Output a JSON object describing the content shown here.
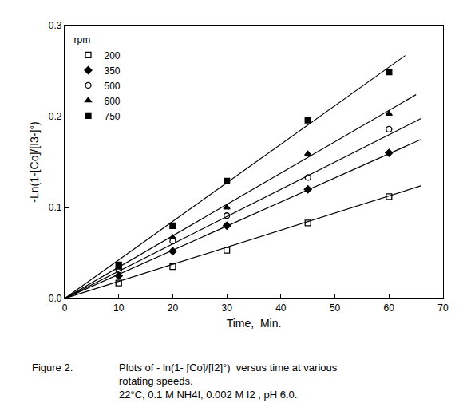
{
  "chart_data": {
    "type": "scatter",
    "x_label": "Time,  Min.",
    "y_label": "-Ln(1-[Co]/[I3-]°)",
    "legend_title": "rpm",
    "legend": "upper left",
    "xlim": [
      0,
      70
    ],
    "xticks": [
      0,
      10,
      20,
      30,
      40,
      50,
      60,
      70
    ],
    "ylim": [
      0,
      0.3
    ],
    "yticks": [
      {
        "value": 0,
        "label": "0.0"
      },
      0.1,
      0.2,
      0.3
    ],
    "grid": false,
    "caption": {
      "label": "Figure 2.",
      "lines": [
        "Plots of - ln(1- [Co]/[I2]°)  versus time at various",
        "rotating speeds.",
        "22°C, 0.1 M NH4I, 0.002 M I2 , pH 6.0."
      ]
    },
    "series": [
      {
        "name": "200",
        "color": "#000000",
        "marker": "square-open",
        "x": [
          10,
          20,
          30,
          45,
          60
        ],
        "values": [
          0.017,
          0.035,
          0.053,
          0.083,
          0.112
        ],
        "fit": {
          "x": [
            0,
            66
          ],
          "values": [
            0,
            0.124
          ]
        }
      },
      {
        "name": "350",
        "color": "#000000",
        "marker": "diamond",
        "x": [
          10,
          20,
          30,
          45,
          60
        ],
        "values": [
          0.025,
          0.052,
          0.08,
          0.12,
          0.16
        ],
        "fit": {
          "x": [
            0,
            66
          ],
          "values": [
            0,
            0.175
          ]
        }
      },
      {
        "name": "500",
        "color": "#000000",
        "marker": "circle-open",
        "x": [
          10,
          20,
          30,
          45,
          60
        ],
        "values": [
          0.031,
          0.063,
          0.091,
          0.133,
          0.186
        ],
        "fit": {
          "x": [
            0,
            66
          ],
          "values": [
            0,
            0.198
          ]
        }
      },
      {
        "name": "600",
        "color": "#000000",
        "marker": "triangle-up",
        "x": [
          10,
          20,
          30,
          45,
          60
        ],
        "values": [
          0.034,
          0.067,
          0.1,
          0.159,
          0.203
        ],
        "fit": {
          "x": [
            0,
            65
          ],
          "values": [
            0,
            0.224
          ]
        }
      },
      {
        "name": "750",
        "color": "#000000",
        "marker": "square",
        "x": [
          10,
          20,
          30,
          45,
          60
        ],
        "values": [
          0.037,
          0.08,
          0.129,
          0.196,
          0.249
        ],
        "fit": {
          "x": [
            0,
            63
          ],
          "values": [
            0,
            0.267
          ]
        }
      }
    ]
  }
}
